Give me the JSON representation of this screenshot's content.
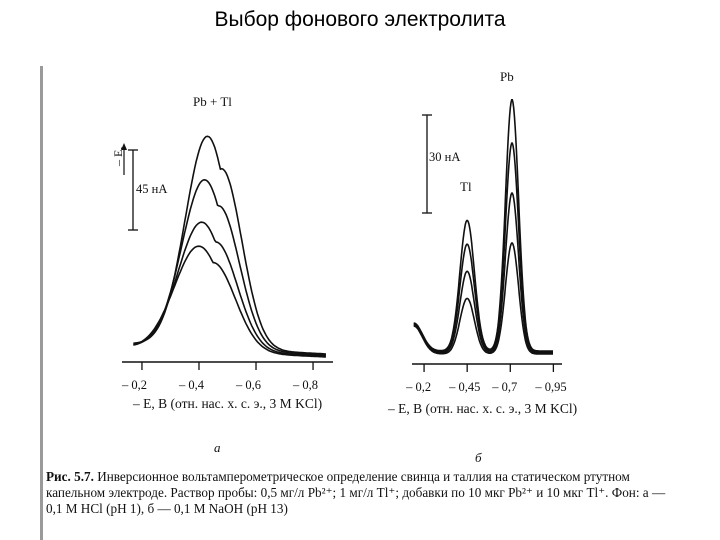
{
  "slide": {
    "title": "Выбор фонового электролита"
  },
  "chart_data": [
    {
      "type": "line",
      "panel_letter": "а",
      "peak_label": "Pb + Tl",
      "scale_bar_label": "45 нА",
      "axis_arrow_label": "– E,",
      "xlabel": "– E, В (отн. нас. х. с. э., 3 М KCl)",
      "xticks": [
        "– 0,2",
        "– 0,4",
        "– 0,6",
        "– 0,8"
      ],
      "xlim": [
        0.13,
        0.87
      ],
      "scale_bar_nA": 45,
      "series": [
        {
          "peak_nA": 119
        },
        {
          "peak_nA": 95
        },
        {
          "peak_nA": 72
        },
        {
          "peak_nA": 59
        }
      ]
    },
    {
      "type": "line",
      "panel_letter": "б",
      "peak_labels": [
        "Tl",
        "Pb"
      ],
      "scale_bar_label": "30 нА",
      "xlabel": "– E, В (отн. нас. х. с. э., 3 М KCl)",
      "xticks": [
        "– 0,2",
        "– 0,45",
        "– 0,7",
        "– 0,95"
      ],
      "xlim": [
        0.13,
        1.0
      ],
      "scale_bar_nA": 30,
      "series": [
        {
          "tl_peak_nA": 40,
          "pb_peak_nA": 77
        },
        {
          "tl_peak_nA": 33,
          "pb_peak_nA": 64
        },
        {
          "tl_peak_nA": 25,
          "pb_peak_nA": 49
        },
        {
          "tl_peak_nA": 17,
          "pb_peak_nA": 34
        }
      ]
    }
  ],
  "caption": {
    "label": "Рис. 5.7.",
    "text": "Инверсионное вольтамперометрическое определение свинца и таллия на статическом ртутном капельном электроде. Раствор пробы: 0,5 мг/л Pb²⁺; 1 мг/л Tl⁺; добавки по 10 мкг Pb²⁺ и 10 мкг Tl⁺. Фон: а — 0,1 М HCl (pH 1), б — 0,1 М NaOH (pH 13)"
  }
}
